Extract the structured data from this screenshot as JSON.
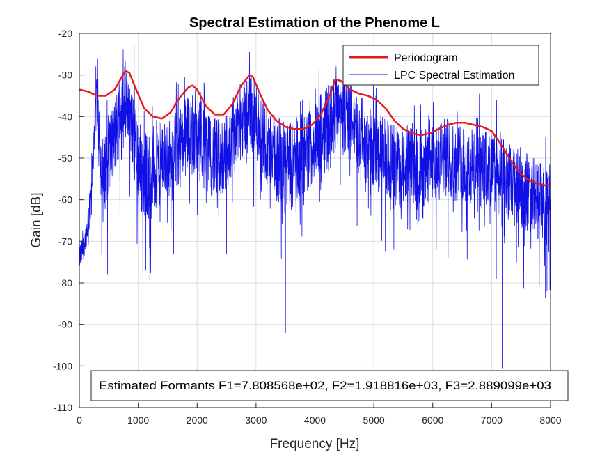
{
  "chart_data": {
    "type": "line",
    "title": "Spectral Estimation of the Phenome L",
    "xlabel": "Frequency [Hz]",
    "ylabel": "Gain [dB]",
    "xlim": [
      0,
      8000
    ],
    "ylim": [
      -110,
      -20
    ],
    "x_ticks": [
      0,
      1000,
      2000,
      3000,
      4000,
      5000,
      6000,
      7000,
      8000
    ],
    "y_ticks": [
      -20,
      -30,
      -40,
      -50,
      -60,
      -70,
      -80,
      -90,
      -100,
      -110
    ],
    "grid": true,
    "legend_position": "top-right",
    "annotation": "Estimated Formants F1=7.808568e+02, F2=1.918816e+03, F3=2.889099e+03",
    "series": [
      {
        "name": "Periodogram",
        "color": "#e41a1c",
        "style": "smooth",
        "x": [
          0,
          150,
          300,
          450,
          600,
          700,
          780,
          850,
          950,
          1100,
          1250,
          1400,
          1550,
          1700,
          1850,
          1920,
          2000,
          2150,
          2300,
          2450,
          2600,
          2750,
          2890,
          2950,
          3050,
          3200,
          3350,
          3500,
          3650,
          3800,
          3950,
          4100,
          4250,
          4350,
          4450,
          4600,
          4750,
          4900,
          5050,
          5200,
          5350,
          5500,
          5650,
          5800,
          5950,
          6100,
          6250,
          6400,
          6550,
          6700,
          6850,
          7000,
          7150,
          7300,
          7450,
          7600,
          7750,
          7900,
          8000
        ],
        "values": [
          -33.5,
          -34,
          -35,
          -35,
          -33.5,
          -31,
          -29,
          -29.5,
          -33,
          -38,
          -40,
          -40.5,
          -39,
          -35.5,
          -33,
          -32.5,
          -33.5,
          -37.5,
          -39.5,
          -39.5,
          -37,
          -32.5,
          -30,
          -30.5,
          -34,
          -38.5,
          -41,
          -42.5,
          -43,
          -43,
          -42,
          -39.5,
          -35,
          -31,
          -31.5,
          -33.5,
          -34.5,
          -35,
          -36,
          -38,
          -41,
          -43,
          -44,
          -44.5,
          -44,
          -43,
          -42,
          -41.5,
          -41.5,
          -42,
          -42.5,
          -43.5,
          -46.5,
          -50,
          -53,
          -55,
          -56,
          -56.5,
          -56.5
        ]
      },
      {
        "name": "LPC Spectral Estimation",
        "color": "#1010e6",
        "style": "noisy",
        "x": [
          0,
          60,
          120,
          180,
          230,
          270,
          290,
          320,
          360,
          400,
          450,
          500,
          560,
          620,
          680,
          740,
          780,
          830,
          880,
          940,
          1000,
          1060,
          1120,
          1200,
          1300,
          1400,
          1500,
          1600,
          1700,
          1800,
          1900,
          2000,
          2100,
          2200,
          2300,
          2400,
          2500,
          2600,
          2700,
          2800,
          2900,
          3000,
          3100,
          3200,
          3300,
          3400,
          3500,
          3600,
          3700,
          3800,
          3900,
          4000,
          4100,
          4200,
          4300,
          4400,
          4500,
          4600,
          4700,
          4800,
          4900,
          5000,
          5100,
          5200,
          5300,
          5400,
          5500,
          5600,
          5700,
          5800,
          5900,
          6000,
          6100,
          6200,
          6300,
          6400,
          6500,
          6600,
          6700,
          6800,
          6900,
          7000,
          7100,
          7200,
          7300,
          7400,
          7500,
          7600,
          7700,
          7800,
          7900,
          8000
        ],
        "values": [
          -74,
          -72,
          -68,
          -62,
          -52,
          -40,
          -32,
          -38,
          -50,
          -55,
          -52,
          -48,
          -47,
          -44,
          -40,
          -36,
          -34,
          -37,
          -42,
          -46,
          -50,
          -53,
          -54,
          -54,
          -52,
          -51,
          -50,
          -49,
          -47,
          -45,
          -44,
          -45,
          -47,
          -49,
          -50,
          -50,
          -48,
          -45,
          -42,
          -40,
          -39,
          -41,
          -44,
          -47,
          -49,
          -51,
          -53,
          -52,
          -50,
          -49,
          -48,
          -46,
          -44,
          -42,
          -40,
          -39,
          -40,
          -41,
          -43,
          -45,
          -47,
          -48,
          -49,
          -50,
          -51,
          -52,
          -52,
          -51,
          -51,
          -52,
          -52,
          -52,
          -51,
          -50,
          -50,
          -51,
          -51,
          -52,
          -52,
          -53,
          -53,
          -53,
          -54,
          -55,
          -56,
          -57,
          -57,
          -58,
          -59,
          -60,
          -62,
          -64
        ],
        "amplitude": [
          2,
          2,
          2,
          3,
          3,
          3,
          3,
          4,
          5,
          6,
          6,
          6,
          6,
          6,
          6,
          5,
          5,
          5,
          5,
          6,
          7,
          7,
          7,
          7,
          7,
          6,
          6,
          6,
          6,
          6,
          6,
          6,
          6,
          6,
          6,
          6,
          6,
          6,
          6,
          6,
          6,
          6,
          6,
          6,
          6,
          7,
          7,
          7,
          7,
          6,
          6,
          6,
          6,
          6,
          6,
          6,
          6,
          6,
          6,
          6,
          6,
          6,
          6,
          6,
          6,
          6,
          6,
          6,
          6,
          6,
          6,
          6,
          6,
          6,
          6,
          6,
          6,
          6,
          6,
          6,
          6,
          6,
          6,
          6,
          6,
          6,
          6,
          6,
          6,
          6,
          6,
          6
        ],
        "spikes": [
          {
            "x": 280,
            "y": -28
          },
          {
            "x": 310,
            "y": -26
          },
          {
            "x": 480,
            "y": -78
          },
          {
            "x": 690,
            "y": -65
          },
          {
            "x": 770,
            "y": -29
          },
          {
            "x": 930,
            "y": -23
          },
          {
            "x": 1080,
            "y": -81
          },
          {
            "x": 1130,
            "y": -77
          },
          {
            "x": 1600,
            "y": -73
          },
          {
            "x": 1920,
            "y": -35
          },
          {
            "x": 2500,
            "y": -73
          },
          {
            "x": 2920,
            "y": -30
          },
          {
            "x": 3500,
            "y": -92
          },
          {
            "x": 4340,
            "y": -31
          },
          {
            "x": 4600,
            "y": -33
          },
          {
            "x": 5340,
            "y": -72
          },
          {
            "x": 6260,
            "y": -74
          },
          {
            "x": 7080,
            "y": -79
          },
          {
            "x": 7180,
            "y": -100.5
          },
          {
            "x": 7940,
            "y": -82
          }
        ]
      }
    ]
  }
}
